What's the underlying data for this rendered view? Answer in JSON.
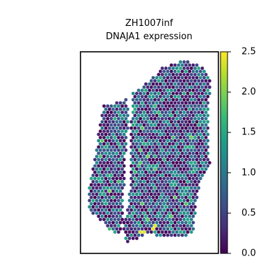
{
  "chart_data": {
    "type": "scatter",
    "subtype": "spatial-hex-spot-map",
    "title": "ZH1007inf",
    "subtitle": "DNAJA1 expression",
    "xlabel": "",
    "ylabel": "",
    "colorbar": {
      "colormap": "viridis",
      "vmin": 0.0,
      "vmax": 2.5,
      "ticks": [
        0.0,
        0.5,
        1.0,
        1.5,
        2.0,
        2.5
      ],
      "tick_labels": [
        "0.0",
        "0.5",
        "1.0",
        "1.5",
        "2.0",
        "2.5"
      ]
    },
    "grid": false,
    "axes_ticks": false,
    "value_distribution": {
      "typical_range": [
        0.0,
        1.5
      ],
      "max_observed": 2.5,
      "notable_high_spots": "a few bright yellow spots near bottom center"
    }
  },
  "colors": {
    "viridis": [
      "#440154",
      "#482878",
      "#3e4989",
      "#31688e",
      "#26828e",
      "#1f9e89",
      "#35b779",
      "#6ece58",
      "#b5de2b",
      "#fde725"
    ]
  }
}
